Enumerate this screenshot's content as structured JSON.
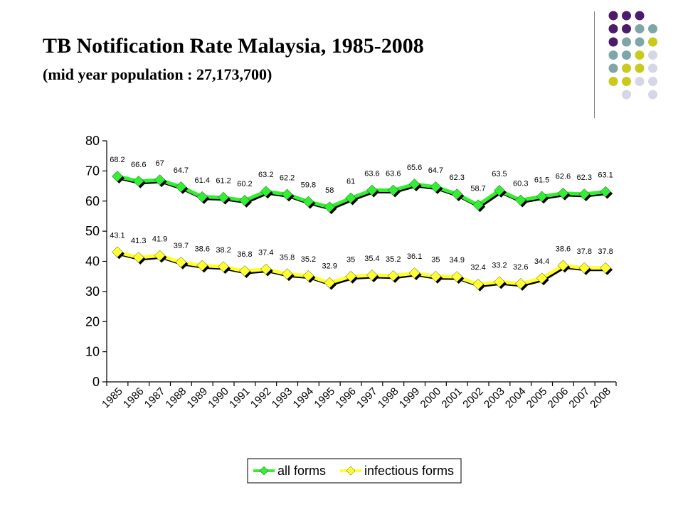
{
  "slide": {
    "title": "TB Notification Rate Malaysia, 1985-2008",
    "subtitle": "(mid year population : 27,173,700)"
  },
  "decoration": {
    "dot_grid_colors": [
      "#4b1c6b",
      "#7ea6a6",
      "#c9c91e",
      "#d6d6ea"
    ]
  },
  "chart_data": {
    "type": "line",
    "title": "",
    "xlabel": "",
    "ylabel": "",
    "ylim": [
      0,
      80
    ],
    "yticks": [
      0,
      10,
      20,
      30,
      40,
      50,
      60,
      70,
      80
    ],
    "grid": false,
    "legend_position": "bottom",
    "categories": [
      "1985",
      "1986",
      "1987",
      "1988",
      "1989",
      "1990",
      "1991",
      "1992",
      "1993",
      "1994",
      "1995",
      "1996",
      "1997",
      "1998",
      "1999",
      "2000",
      "2001",
      "2002",
      "2003",
      "2004",
      "2005",
      "2006",
      "2007",
      "2008"
    ],
    "series": [
      {
        "name": "all forms",
        "color": "#33ee33",
        "values": [
          68.2,
          66.6,
          67,
          64.7,
          61.4,
          61.2,
          60.2,
          63.2,
          62.2,
          59.8,
          58,
          61,
          63.6,
          63.6,
          65.6,
          64.7,
          62.3,
          58.7,
          63.5,
          60.3,
          61.5,
          62.6,
          62.3,
          63.1
        ]
      },
      {
        "name": "infectious forms",
        "color": "#ffff33",
        "values": [
          43.1,
          41.3,
          41.9,
          39.7,
          38.6,
          38.2,
          36.8,
          37.4,
          35.8,
          35.2,
          32.9,
          35,
          35.4,
          35.2,
          36.1,
          35,
          34.9,
          32.4,
          33.2,
          32.6,
          34.4,
          38.6,
          37.8,
          37.8
        ]
      }
    ]
  }
}
